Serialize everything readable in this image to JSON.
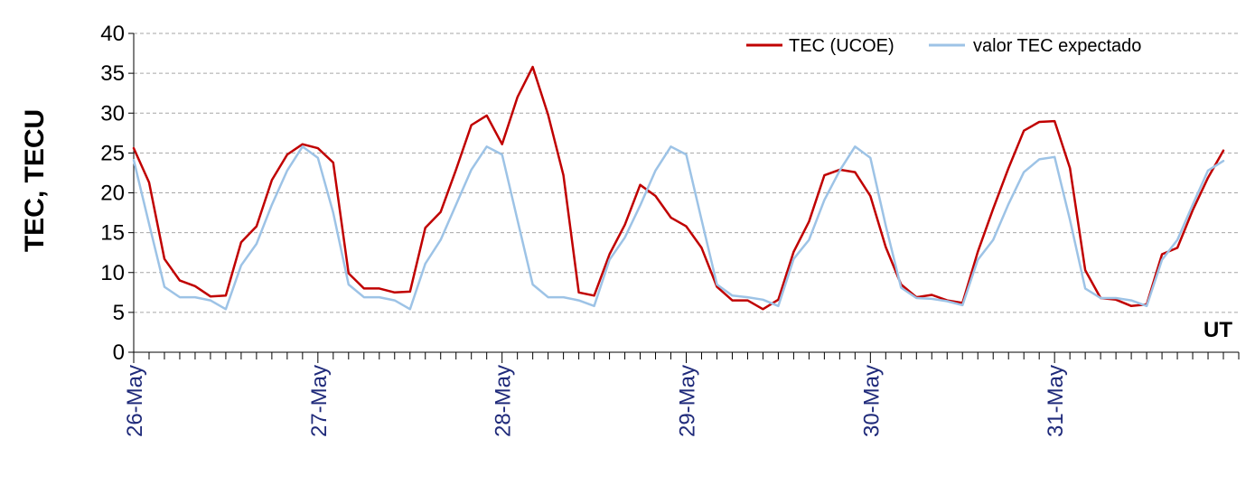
{
  "chart_data": {
    "type": "line",
    "title": "",
    "ylabel": "TEC, TECU",
    "xlabel": "UT",
    "ylim": [
      0,
      40
    ],
    "yticks": [
      0,
      5,
      10,
      15,
      20,
      25,
      30,
      35,
      40
    ],
    "xticks": [
      {
        "label": "26-May",
        "x": 0
      },
      {
        "label": "27-May",
        "x": 24
      },
      {
        "label": "28-May",
        "x": 48
      },
      {
        "label": "29-May",
        "x": 72
      },
      {
        "label": "30-May",
        "x": 96
      },
      {
        "label": "31-May",
        "x": 120
      }
    ],
    "x_unit": "hours since 26-May 00 UT",
    "x_range": [
      0,
      144
    ],
    "minor_tick_hours": 2,
    "grid": "horizontal dashed",
    "legend_position": "top-right",
    "series": [
      {
        "name": "TEC (UCOE)",
        "color": "#c00000",
        "points": [
          [
            0,
            25.6
          ],
          [
            2,
            21.3
          ],
          [
            4,
            11.7
          ],
          [
            6,
            9.0
          ],
          [
            8,
            8.3
          ],
          [
            10,
            7.0
          ],
          [
            12,
            7.1
          ],
          [
            14,
            13.8
          ],
          [
            16,
            15.8
          ],
          [
            18,
            21.6
          ],
          [
            20,
            24.8
          ],
          [
            22,
            26.1
          ],
          [
            24,
            25.6
          ],
          [
            26,
            23.8
          ],
          [
            28,
            9.9
          ],
          [
            30,
            8.0
          ],
          [
            32,
            8.0
          ],
          [
            34,
            7.5
          ],
          [
            36,
            7.6
          ],
          [
            38,
            15.6
          ],
          [
            40,
            17.6
          ],
          [
            42,
            22.9
          ],
          [
            44,
            28.5
          ],
          [
            46,
            29.7
          ],
          [
            48,
            26.1
          ],
          [
            50,
            32.0
          ],
          [
            52,
            35.8
          ],
          [
            54,
            29.8
          ],
          [
            56,
            22.2
          ],
          [
            58,
            7.5
          ],
          [
            60,
            7.1
          ],
          [
            62,
            12.3
          ],
          [
            64,
            16.0
          ],
          [
            66,
            21.0
          ],
          [
            68,
            19.6
          ],
          [
            70,
            16.9
          ],
          [
            72,
            15.8
          ],
          [
            74,
            13.1
          ],
          [
            76,
            8.2
          ],
          [
            78,
            6.5
          ],
          [
            80,
            6.5
          ],
          [
            82,
            5.4
          ],
          [
            84,
            6.6
          ],
          [
            86,
            12.6
          ],
          [
            88,
            16.4
          ],
          [
            90,
            22.2
          ],
          [
            92,
            22.9
          ],
          [
            94,
            22.6
          ],
          [
            96,
            19.6
          ],
          [
            98,
            13.2
          ],
          [
            100,
            8.5
          ],
          [
            102,
            6.9
          ],
          [
            104,
            7.2
          ],
          [
            106,
            6.5
          ],
          [
            108,
            6.2
          ],
          [
            110,
            12.6
          ],
          [
            112,
            18.0
          ],
          [
            114,
            23.1
          ],
          [
            116,
            27.8
          ],
          [
            118,
            28.9
          ],
          [
            120,
            29.0
          ],
          [
            122,
            23.1
          ],
          [
            124,
            10.3
          ],
          [
            126,
            6.8
          ],
          [
            128,
            6.6
          ],
          [
            130,
            5.8
          ],
          [
            132,
            6.0
          ],
          [
            134,
            12.3
          ],
          [
            136,
            13.1
          ],
          [
            138,
            17.8
          ],
          [
            140,
            21.9
          ],
          [
            142,
            25.3
          ]
        ]
      },
      {
        "name": "valor TEC expectado",
        "color": "#9dc3e6",
        "points": [
          [
            0,
            24.1
          ],
          [
            2,
            16.1
          ],
          [
            4,
            8.2
          ],
          [
            6,
            6.9
          ],
          [
            8,
            6.9
          ],
          [
            10,
            6.5
          ],
          [
            12,
            5.4
          ],
          [
            14,
            10.9
          ],
          [
            16,
            13.6
          ],
          [
            18,
            18.5
          ],
          [
            20,
            22.8
          ],
          [
            22,
            25.8
          ],
          [
            24,
            24.4
          ],
          [
            26,
            17.5
          ],
          [
            28,
            8.5
          ],
          [
            30,
            6.9
          ],
          [
            32,
            6.9
          ],
          [
            34,
            6.5
          ],
          [
            36,
            5.4
          ],
          [
            38,
            11.1
          ],
          [
            40,
            14.1
          ],
          [
            42,
            18.5
          ],
          [
            44,
            22.9
          ],
          [
            46,
            25.8
          ],
          [
            48,
            24.8
          ],
          [
            50,
            16.6
          ],
          [
            52,
            8.5
          ],
          [
            54,
            6.9
          ],
          [
            56,
            6.9
          ],
          [
            58,
            6.5
          ],
          [
            60,
            5.8
          ],
          [
            62,
            11.6
          ],
          [
            64,
            14.4
          ],
          [
            66,
            18.4
          ],
          [
            68,
            22.8
          ],
          [
            70,
            25.8
          ],
          [
            72,
            24.8
          ],
          [
            74,
            16.6
          ],
          [
            76,
            8.5
          ],
          [
            78,
            7.1
          ],
          [
            80,
            6.9
          ],
          [
            82,
            6.6
          ],
          [
            84,
            5.8
          ],
          [
            86,
            11.7
          ],
          [
            88,
            14.1
          ],
          [
            90,
            19.1
          ],
          [
            92,
            22.8
          ],
          [
            94,
            25.8
          ],
          [
            96,
            24.4
          ],
          [
            98,
            15.9
          ],
          [
            100,
            8.1
          ],
          [
            102,
            6.8
          ],
          [
            104,
            6.7
          ],
          [
            106,
            6.4
          ],
          [
            108,
            5.9
          ],
          [
            110,
            11.6
          ],
          [
            112,
            14.1
          ],
          [
            114,
            18.6
          ],
          [
            116,
            22.6
          ],
          [
            118,
            24.2
          ],
          [
            120,
            24.5
          ],
          [
            122,
            16.6
          ],
          [
            124,
            8.0
          ],
          [
            126,
            6.8
          ],
          [
            128,
            6.8
          ],
          [
            130,
            6.5
          ],
          [
            132,
            5.8
          ],
          [
            134,
            11.6
          ],
          [
            136,
            14.1
          ],
          [
            138,
            18.5
          ],
          [
            140,
            22.8
          ],
          [
            142,
            24.0
          ]
        ]
      }
    ]
  }
}
